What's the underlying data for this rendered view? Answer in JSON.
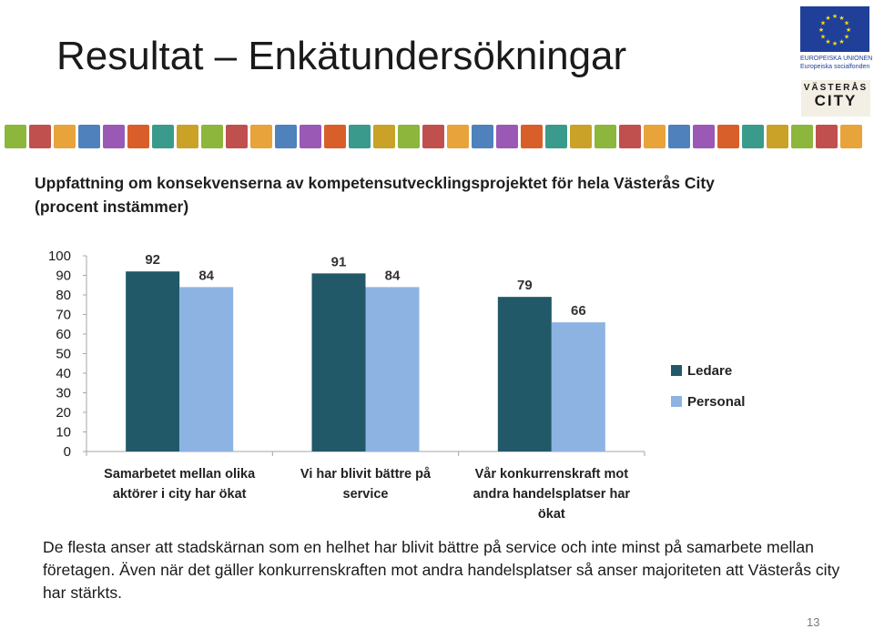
{
  "slide": {
    "title": "Resultat – Enkätundersökningar",
    "page_number": "13"
  },
  "logos": {
    "eu_line1": "EUROPEISKA UNIONEN",
    "eu_line2": "Europeiska socialfonden",
    "city_line1": "VÄSTERÅS",
    "city_line2": "CITY"
  },
  "chart_data": {
    "type": "bar",
    "title": "Uppfattning om konsekvenserna av kompetensutvecklingsprojektet för hela Västerås City (procent instämmer)",
    "categories": [
      [
        "Samarbetet mellan olika",
        "aktörer i city har ökat"
      ],
      [
        "Vi har blivit bättre på",
        "service"
      ],
      [
        "Vår konkurrenskraft mot",
        "andra handelsplatser har",
        "ökat"
      ]
    ],
    "series": [
      {
        "name": "Ledare",
        "values": [
          92,
          91,
          79
        ],
        "color": "#215968"
      },
      {
        "name": "Personal",
        "values": [
          84,
          84,
          66
        ],
        "color": "#8db3e2"
      }
    ],
    "ylim": [
      0,
      100
    ],
    "yticks": [
      0,
      10,
      20,
      30,
      40,
      50,
      60,
      70,
      80,
      90,
      100
    ],
    "grid": false,
    "legend": "right"
  },
  "body": {
    "text": "De flesta anser att stadskärnan som en helhet har blivit bättre på service och inte minst på samarbete mellan företagen. Även när det gäller konkurrenskraften mot andra handelsplatser så anser majoriteten att Västerås city har stärkts."
  }
}
